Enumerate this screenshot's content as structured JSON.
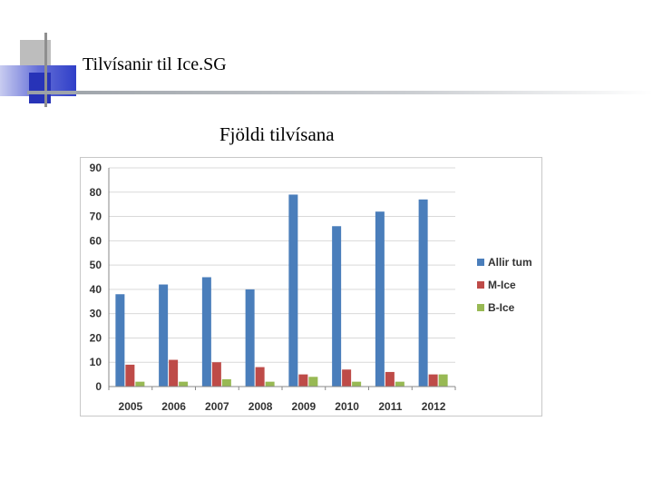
{
  "slide": {
    "title": "Tilvísanir til Ice.SG",
    "colors": {
      "deco_blue": "#2f3fc8",
      "deco_gray": "#b5b5b5"
    }
  },
  "chart_data": {
    "type": "bar",
    "title": "Fjöldi tilvísana",
    "xlabel": "",
    "ylabel": "",
    "categories": [
      "2005",
      "2006",
      "2007",
      "2008",
      "2009",
      "2010",
      "2011",
      "2012"
    ],
    "series": [
      {
        "name": "Allir tum",
        "color": "#4a7ebb",
        "values": [
          38,
          42,
          45,
          40,
          79,
          66,
          72,
          77
        ]
      },
      {
        "name": "M-Ice",
        "color": "#be4b48",
        "values": [
          9,
          11,
          10,
          8,
          5,
          7,
          6,
          5
        ]
      },
      {
        "name": "B-Ice",
        "color": "#98b954",
        "values": [
          2,
          2,
          3,
          2,
          4,
          2,
          2,
          5
        ]
      }
    ],
    "ylim": [
      0,
      90
    ],
    "yticks": [
      0,
      10,
      20,
      30,
      40,
      50,
      60,
      70,
      80,
      90
    ],
    "grid": true,
    "legend": "right"
  }
}
